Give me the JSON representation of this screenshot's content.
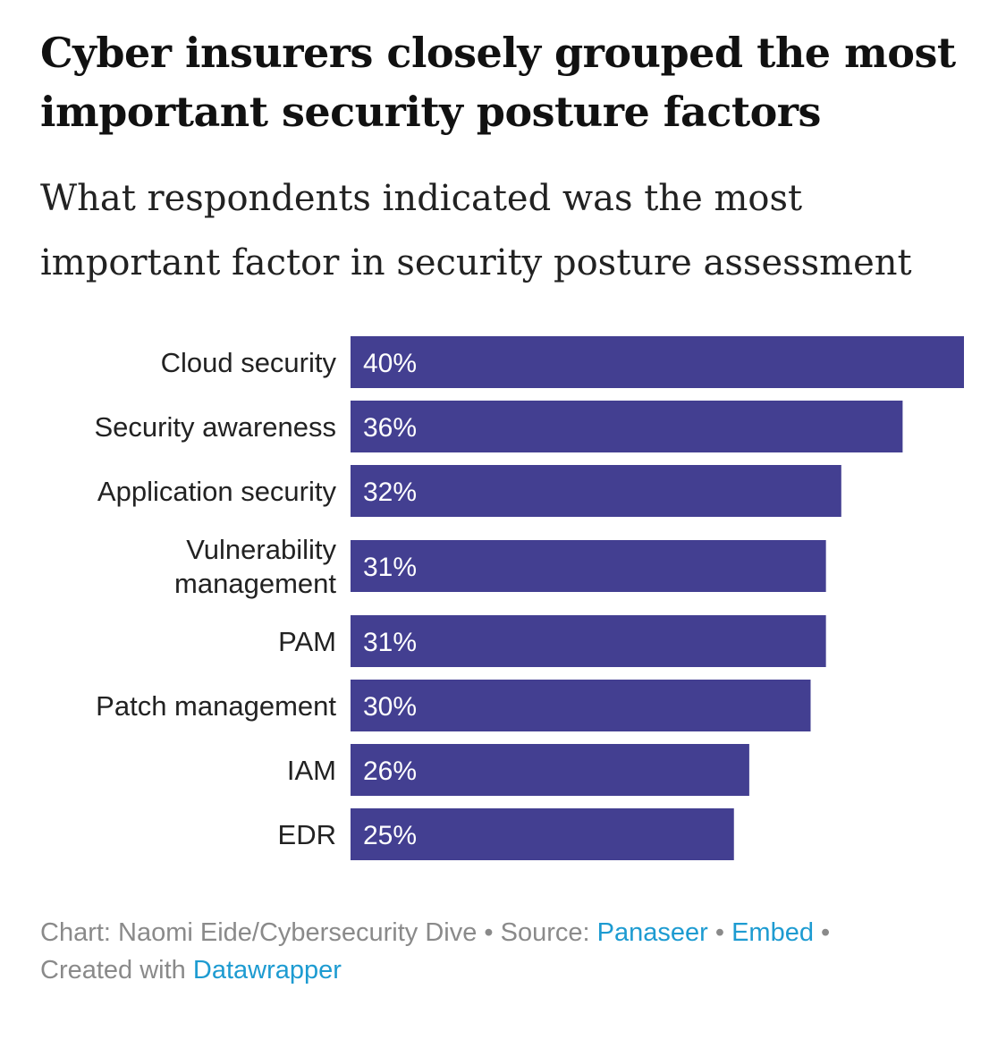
{
  "title": "Cyber insurers closely grouped the most important security posture factors",
  "subtitle": "What respondents indicated was the most important factor in security posture assessment",
  "chart_data": {
    "type": "bar",
    "orientation": "horizontal",
    "categories": [
      [
        "Cloud security"
      ],
      [
        "Security awareness"
      ],
      [
        "Application security"
      ],
      [
        "Vulnerability",
        "management"
      ],
      [
        "PAM"
      ],
      [
        "Patch management"
      ],
      [
        "IAM"
      ],
      [
        "EDR"
      ]
    ],
    "values": [
      40,
      36,
      32,
      31,
      31,
      30,
      26,
      25
    ],
    "value_labels": [
      "40%",
      "36%",
      "32%",
      "31%",
      "31%",
      "30%",
      "26%",
      "25%"
    ],
    "xlim": [
      0,
      40
    ],
    "grid": false,
    "bar_color": "#433f91",
    "label_color": "#ffffff"
  },
  "footer": {
    "chart_credit": "Chart: Naomi Eide/Cybersecurity Dive",
    "source_label": "Source:",
    "source_link": "Panaseer",
    "embed_link": "Embed",
    "created_with": "Created with",
    "tool_link": "Datawrapper",
    "separator": "•"
  }
}
